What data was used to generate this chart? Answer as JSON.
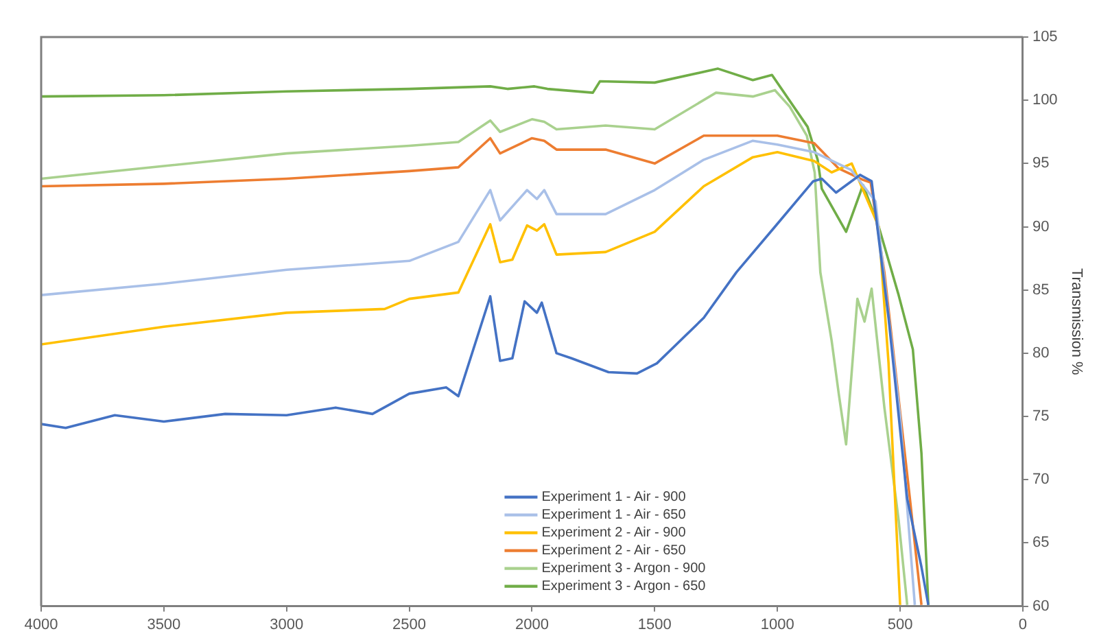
{
  "chart_data": {
    "type": "line",
    "y2label": "Transmission %",
    "xlim": [
      4000,
      0
    ],
    "xticks": [
      4000,
      3500,
      3000,
      2500,
      2000,
      1500,
      1000,
      500,
      0
    ],
    "y2lim": [
      60,
      105
    ],
    "y2ticks": [
      60,
      65,
      70,
      75,
      80,
      85,
      90,
      95,
      100,
      105
    ],
    "grid": false,
    "legend": "bottom",
    "marker": "none",
    "line_style": "solid",
    "series": [
      {
        "name": "Experiment 1 - Air - 900",
        "color": "#4472c4",
        "axis": "y2",
        "x": [
          4000,
          3900,
          3700,
          3500,
          3250,
          3000,
          2800,
          2650,
          2500,
          2350,
          2300,
          2170,
          2130,
          2080,
          2030,
          1980,
          1960,
          1900,
          1839,
          1688,
          1572,
          1491,
          1300,
          1167,
          1010,
          854,
          819,
          761,
          663,
          616,
          547,
          471,
          413,
          385
        ],
        "values": [
          74.4,
          74.1,
          75.1,
          74.6,
          75.2,
          75.1,
          75.7,
          75.2,
          76.8,
          77.3,
          76.6,
          84.5,
          79.4,
          79.6,
          84.1,
          83.2,
          84.0,
          80.0,
          79.6,
          78.5,
          78.4,
          79.2,
          82.8,
          86.4,
          90.0,
          93.6,
          93.8,
          92.7,
          94.1,
          93.6,
          82.8,
          68.5,
          63.1,
          60.1
        ]
      },
      {
        "name": "Experiment 1 - Air - 650",
        "color": "#a9c0e8",
        "axis": "y2",
        "x": [
          4000,
          3500,
          3000,
          2500,
          2300,
          2170,
          2130,
          2020,
          1980,
          1950,
          1900,
          1700,
          1500,
          1300,
          1100,
          1000,
          850,
          700,
          600,
          500,
          440
        ],
        "values": [
          84.6,
          85.5,
          86.6,
          87.3,
          88.8,
          92.9,
          90.5,
          92.9,
          92.2,
          92.9,
          91.0,
          91.0,
          92.9,
          95.3,
          96.8,
          96.5,
          95.9,
          94.5,
          92.0,
          75.0,
          60.1
        ]
      },
      {
        "name": "Experiment 2 - Air - 900",
        "color": "#ffc000",
        "axis": "y2",
        "x": [
          4000,
          3500,
          3000,
          2600,
          2500,
          2300,
          2170,
          2130,
          2080,
          2020,
          1980,
          1950,
          1900,
          1700,
          1500,
          1300,
          1100,
          1000,
          850,
          779,
          697,
          587,
          547,
          500
        ],
        "values": [
          80.7,
          82.1,
          83.2,
          83.5,
          84.3,
          84.8,
          90.2,
          87.2,
          87.4,
          90.1,
          89.7,
          90.2,
          87.8,
          88.0,
          89.6,
          93.2,
          95.5,
          95.9,
          95.2,
          94.3,
          95.0,
          90.0,
          79.2,
          60.1
        ]
      },
      {
        "name": "Experiment 2 - Air - 650",
        "color": "#ed7d31",
        "axis": "y2",
        "x": [
          4000,
          3500,
          3000,
          2500,
          2300,
          2170,
          2130,
          2000,
          1950,
          1900,
          1700,
          1500,
          1300,
          1000,
          850,
          750,
          650,
          620,
          564,
          460,
          413
        ],
        "values": [
          93.2,
          93.4,
          93.8,
          94.4,
          94.7,
          97.0,
          95.8,
          97.0,
          96.8,
          96.1,
          96.1,
          95.0,
          97.2,
          97.2,
          96.6,
          94.6,
          93.7,
          93.5,
          86.4,
          68.5,
          60.1
        ]
      },
      {
        "name": "Experiment 3 - Argon - 900",
        "color": "#a9d18e",
        "axis": "y2",
        "x": [
          4000,
          3500,
          3000,
          2500,
          2300,
          2170,
          2130,
          2000,
          1950,
          1900,
          1700,
          1500,
          1250,
          1100,
          1010,
          950,
          880,
          848,
          825,
          779,
          750,
          720,
          674,
          645,
          616,
          564,
          506,
          471
        ],
        "values": [
          93.8,
          94.8,
          95.8,
          96.4,
          96.7,
          98.4,
          97.5,
          98.5,
          98.3,
          97.7,
          98.0,
          97.7,
          100.6,
          100.3,
          100.8,
          99.5,
          97.2,
          94.3,
          86.4,
          81.0,
          76.8,
          72.8,
          84.3,
          82.5,
          85.1,
          75.7,
          66.8,
          60.1
        ]
      },
      {
        "name": "Experiment 3 - Argon - 650",
        "color": "#70ad47",
        "axis": "y2",
        "x": [
          4000,
          3500,
          3000,
          2500,
          2170,
          2100,
          1990,
          1937,
          1752,
          1723,
          1500,
          1242,
          1100,
          1022,
          877,
          836,
          819,
          720,
          651,
          587,
          506,
          448,
          413,
          385
        ],
        "values": [
          100.3,
          100.4,
          100.7,
          100.9,
          101.1,
          100.9,
          101.1,
          100.9,
          100.6,
          101.5,
          101.4,
          102.5,
          101.6,
          102.0,
          97.9,
          95.3,
          93.0,
          89.6,
          93.3,
          90.0,
          84.6,
          80.3,
          72.1,
          60.1
        ]
      }
    ]
  }
}
